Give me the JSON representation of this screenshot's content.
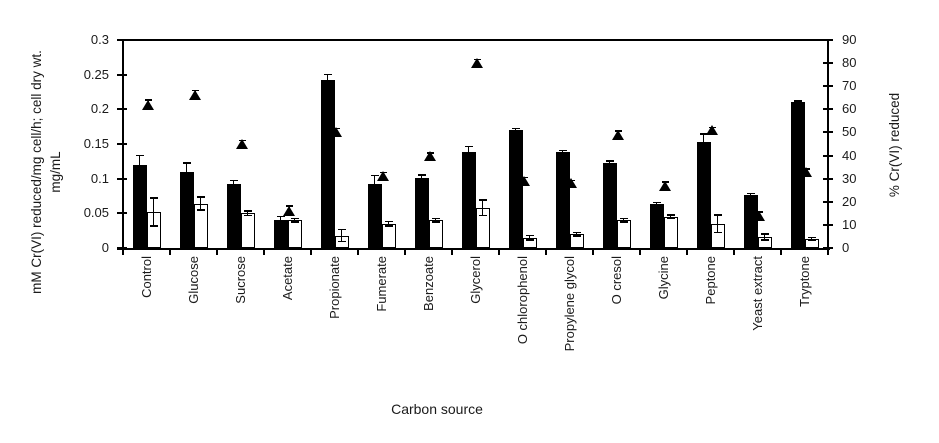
{
  "chart_data": {
    "type": "bar",
    "title": "",
    "xlabel": "Carbon source",
    "grid": false,
    "legend": "none",
    "categories": [
      "Control",
      "Glucose",
      "Sucrose",
      "Acetate",
      "Propionate",
      "Fumerate",
      "Benzoate",
      "Glycerol",
      "O chlorophenol",
      "Propylene glycol",
      "O cresol",
      "Glycine",
      "Peptone",
      "Yeast extract",
      "Tryptone"
    ],
    "left_axis": {
      "label_line1": "mM Cr(VI) reduced/mg cell/h; cell dry wt.",
      "label_line2": "mg/mL",
      "min": 0,
      "max": 0.3,
      "step": 0.05,
      "tick_labels": [
        "0",
        "0.05",
        "0.1",
        "0.15",
        "0.2",
        "0.25",
        "0.3"
      ]
    },
    "right_axis": {
      "label": "% Cr(VI) reduced",
      "min": 0,
      "max": 90,
      "step": 10,
      "tick_labels": [
        "0",
        "10",
        "20",
        "30",
        "40",
        "50",
        "60",
        "70",
        "80",
        "90"
      ]
    },
    "series": [
      {
        "name": "mM Cr(VI) reduced/mg cell/h",
        "marker": "black-bar",
        "axis": "left",
        "values": [
          0.12,
          0.11,
          0.093,
          0.041,
          0.242,
          0.092,
          0.101,
          0.139,
          0.17,
          0.138,
          0.123,
          0.063,
          0.153,
          0.076,
          0.21
        ],
        "errors": [
          0.013,
          0.012,
          0.004,
          0.004,
          0.008,
          0.012,
          0.004,
          0.007,
          0.002,
          0.002,
          0.002,
          0.002,
          0.011,
          0.002,
          0.002
        ]
      },
      {
        "name": "cell dry wt. mg/mL",
        "marker": "white-bar",
        "axis": "left",
        "values": [
          0.052,
          0.064,
          0.05,
          0.04,
          0.018,
          0.035,
          0.04,
          0.058,
          0.015,
          0.02,
          0.04,
          0.045,
          0.035,
          0.016,
          0.013
        ],
        "errors": [
          0.02,
          0.009,
          0.003,
          0.002,
          0.008,
          0.003,
          0.002,
          0.011,
          0.003,
          0.002,
          0.002,
          0.002,
          0.012,
          0.004,
          0.002
        ]
      },
      {
        "name": "% Cr(VI) reduced",
        "marker": "triangle",
        "axis": "right",
        "values": [
          62,
          66,
          45,
          16,
          50,
          31,
          40,
          80,
          29,
          28,
          49,
          27,
          51,
          14,
          33
        ],
        "errors": [
          2,
          2,
          1.5,
          2,
          1.5,
          1.5,
          1,
          1.5,
          1.5,
          1,
          1.5,
          1.5,
          1,
          1.5,
          1
        ]
      }
    ],
    "colors": {
      "bar_fill": "#000000",
      "bar_open_fill": "#ffffff",
      "line": "#000000",
      "text": "#1a1a1a"
    }
  }
}
